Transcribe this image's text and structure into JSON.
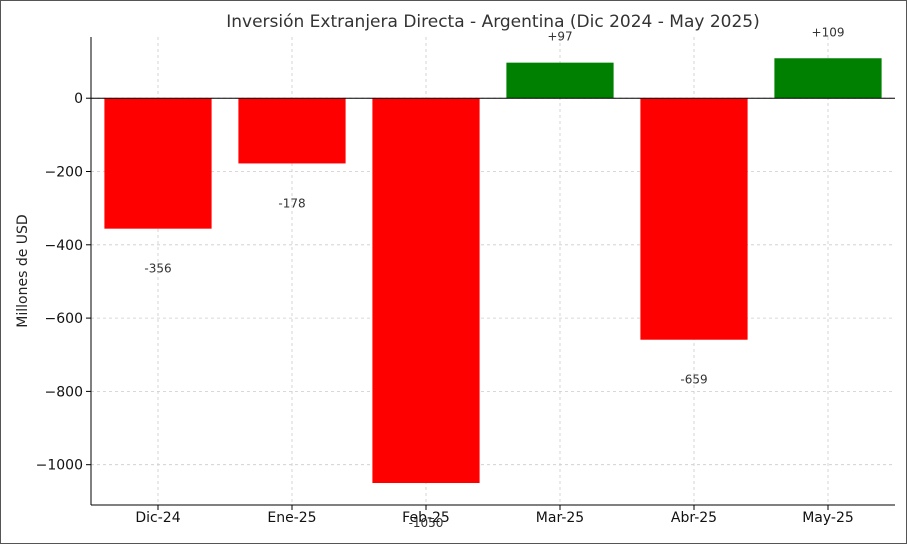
{
  "chart_data": {
    "type": "bar",
    "title": "Inversión Extranjera Directa - Argentina (Dic 2024 - May 2025)",
    "xlabel": "",
    "ylabel": "Millones de USD",
    "categories": [
      "Dic-24",
      "Ene-25",
      "Feb-25",
      "Mar-25",
      "Abr-25",
      "May-25"
    ],
    "values": [
      -356,
      -178,
      -1050,
      97,
      -659,
      109
    ],
    "data_labels": [
      "-356",
      "-178",
      "-1050",
      "+97",
      "-659",
      "+109"
    ],
    "yticks": [
      0,
      -200,
      -400,
      -600,
      -800,
      -1000
    ],
    "ytick_labels": [
      "0",
      "−200",
      "−400",
      "−600",
      "−800",
      "−1000"
    ],
    "ylim": [
      -1110,
      167
    ],
    "grid": true,
    "colors": {
      "positive": "#008000",
      "negative": "#ff0000",
      "grid": "#cccccc",
      "axis": "#000000"
    }
  }
}
